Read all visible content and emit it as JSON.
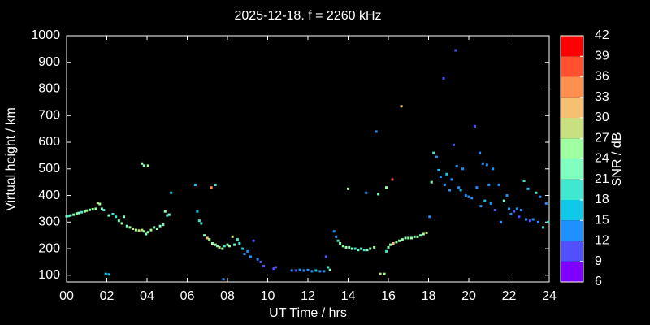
{
  "chart_data": {
    "type": "scatter",
    "title": "2025-12-18. f = 2260 kHz",
    "x_label": "UT Time / hrs",
    "y_label": "Virtual height / km",
    "xlim": [
      0,
      24
    ],
    "xticks": [
      {
        "value": 0,
        "label": "00"
      },
      {
        "value": 2,
        "label": "02"
      },
      {
        "value": 4,
        "label": "04"
      },
      {
        "value": 6,
        "label": "06"
      },
      {
        "value": 8,
        "label": "08"
      },
      10,
      12,
      14,
      16,
      18,
      20,
      22,
      24
    ],
    "ylim": [
      75,
      1000
    ],
    "yticks": [
      100,
      200,
      300,
      400,
      500,
      600,
      700,
      800,
      900,
      1000
    ],
    "grid": false,
    "x": [
      0,
      0.1,
      0.2,
      0.35,
      0.5,
      0.6,
      0.75,
      0.9,
      1.0,
      1.15,
      1.3,
      1.45,
      1.55,
      1.65,
      1.75,
      1.85,
      2.1,
      2.3,
      2.45,
      2.6,
      2.75,
      2.85,
      3.0,
      3.15,
      3.3,
      3.45,
      3.6,
      3.75,
      3.85,
      3.95,
      4.05,
      4.2,
      4.35,
      4.5,
      4.65,
      4.8,
      4.9,
      5.0,
      5.1,
      5.2,
      1.95,
      2.1,
      3.75,
      3.85,
      4.05,
      6.4,
      6.5,
      6.6,
      6.7,
      6.85,
      7.0,
      7.1,
      7.25,
      7.4,
      7.5,
      7.6,
      7.75,
      7.85,
      8.0,
      8.1,
      8.25,
      8.35,
      8.5,
      8.6,
      8.75,
      8.85,
      9.0,
      9.15,
      9.3,
      9.5,
      9.65,
      9.8,
      10.3,
      10.4,
      11.2,
      11.4,
      11.6,
      11.8,
      12.0,
      12.2,
      12.4,
      12.6,
      12.8,
      13.0,
      13.1,
      12.9,
      13.3,
      13.4,
      13.5,
      13.6,
      13.75,
      13.9,
      14.05,
      14.2,
      14.35,
      14.5,
      14.65,
      14.8,
      14.95,
      15.1,
      15.3,
      15.6,
      15.8,
      15.9,
      16.0,
      16.1,
      16.25,
      16.4,
      16.55,
      16.7,
      16.85,
      17.0,
      17.15,
      17.3,
      17.45,
      17.6,
      17.75,
      17.9,
      14.0,
      14.9,
      15.4,
      15.5,
      15.9,
      16.2,
      16.65,
      7.8,
      7.2,
      7.4,
      18.05,
      18.15,
      18.25,
      18.4,
      18.5,
      18.6,
      18.75,
      18.8,
      18.9,
      19.05,
      19.15,
      19.25,
      19.35,
      19.4,
      19.5,
      19.6,
      19.7,
      19.85,
      20.0,
      20.15,
      20.3,
      20.4,
      20.55,
      20.6,
      20.7,
      20.8,
      20.9,
      21.0,
      21.1,
      21.2,
      21.3,
      21.5,
      21.6,
      21.75,
      21.9,
      22.0,
      22.1,
      22.25,
      22.4,
      22.5,
      22.6,
      22.75,
      22.85,
      22.95,
      23.05,
      23.2,
      23.35,
      23.45,
      23.55,
      23.7,
      23.85,
      23.95
    ],
    "values": [
      322,
      323,
      325,
      328,
      332,
      334,
      337,
      340,
      343,
      346,
      348,
      350,
      372,
      368,
      350,
      345,
      325,
      330,
      320,
      305,
      295,
      320,
      285,
      280,
      275,
      270,
      268,
      270,
      265,
      255,
      262,
      270,
      280,
      275,
      285,
      290,
      340,
      325,
      328,
      410,
      105,
      103,
      520,
      512,
      512,
      440,
      340,
      305,
      295,
      250,
      240,
      235,
      220,
      215,
      210,
      205,
      200,
      210,
      215,
      210,
      245,
      215,
      235,
      220,
      200,
      180,
      190,
      170,
      230,
      160,
      150,
      135,
      125,
      130,
      118,
      118,
      120,
      118,
      120,
      115,
      118,
      115,
      115,
      130,
      120,
      170,
      265,
      245,
      230,
      220,
      210,
      205,
      205,
      200,
      200,
      195,
      200,
      195,
      195,
      200,
      205,
      105,
      105,
      190,
      205,
      215,
      220,
      225,
      230,
      235,
      240,
      240,
      240,
      245,
      245,
      250,
      255,
      260,
      425,
      410,
      640,
      405,
      430,
      460,
      735,
      85,
      430,
      440,
      320,
      450,
      560,
      545,
      495,
      470,
      840,
      440,
      480,
      420,
      460,
      590,
      945,
      510,
      430,
      420,
      500,
      400,
      395,
      390,
      660,
      430,
      560,
      360,
      520,
      380,
      515,
      440,
      370,
      500,
      345,
      440,
      300,
      380,
      400,
      350,
      330,
      340,
      350,
      320,
      345,
      455,
      310,
      425,
      305,
      310,
      410,
      300,
      395,
      280,
      370,
      300
    ],
    "snr": [
      21,
      20,
      22,
      21,
      24,
      22,
      20,
      25,
      24,
      22,
      25,
      24,
      27,
      25,
      21,
      19,
      21,
      18,
      20,
      22,
      24,
      21,
      23,
      25,
      27,
      25,
      28,
      28,
      26,
      22,
      24,
      26,
      22,
      25,
      23,
      22,
      25,
      20,
      21,
      15,
      15,
      15,
      25,
      22,
      24,
      15,
      15,
      18,
      20,
      22,
      30,
      26,
      24,
      24,
      22,
      27,
      25,
      20,
      24,
      25,
      27,
      22,
      20,
      18,
      15,
      12,
      14,
      12,
      10,
      12,
      10,
      9,
      10,
      10,
      12,
      11,
      12,
      12,
      12,
      13,
      15,
      12,
      13,
      20,
      22,
      11,
      12,
      14,
      20,
      22,
      25,
      24,
      22,
      21,
      20,
      22,
      18,
      20,
      21,
      22,
      24,
      27,
      25,
      18,
      22,
      24,
      30,
      25,
      22,
      24,
      22,
      24,
      25,
      22,
      24,
      22,
      24,
      27,
      24,
      14,
      13,
      22,
      24,
      36,
      32,
      12,
      33,
      20,
      13,
      22,
      20,
      13,
      15,
      12,
      11,
      12,
      15,
      12,
      14,
      11,
      11,
      12,
      13,
      15,
      12,
      14,
      12,
      13,
      11,
      12,
      12,
      13,
      12,
      16,
      13,
      12,
      12,
      14,
      11,
      13,
      12,
      22,
      12,
      12,
      13,
      11,
      12,
      10,
      13,
      18,
      12,
      17,
      11,
      13,
      18,
      12,
      14,
      20,
      13,
      20
    ],
    "colorbar": {
      "label": "SNR / dB",
      "clim": [
        6,
        42
      ],
      "ticks": [
        6,
        9,
        12,
        15,
        18,
        21,
        24,
        27,
        30,
        33,
        36,
        39,
        42
      ],
      "colors": [
        "#8000ff",
        "#5050ff",
        "#2090ff",
        "#10c8e8",
        "#40e8d0",
        "#80ffc0",
        "#a0ffa0",
        "#c8e080",
        "#f5c070",
        "#ff9050",
        "#ff5030",
        "#ff0000"
      ]
    }
  }
}
